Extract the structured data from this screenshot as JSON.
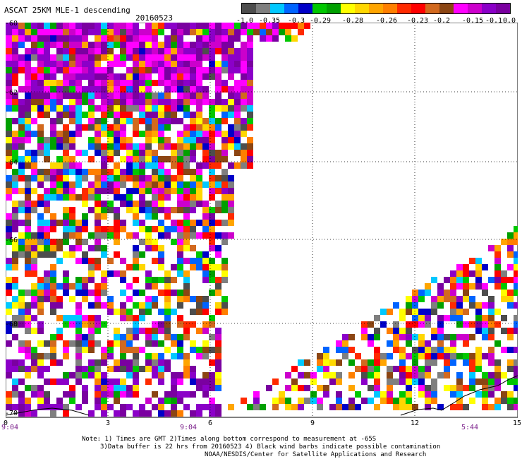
{
  "header": {
    "title": "ASCAT 25KM MLE-1 descending",
    "date": "20160523"
  },
  "colorbar": {
    "colors": [
      "#4d4d4d",
      "#7f7f7f",
      "#00c8ff",
      "#0064ff",
      "#0000c8",
      "#00c800",
      "#00a000",
      "#ffff00",
      "#ffd700",
      "#ffa500",
      "#ff7f00",
      "#ff2a00",
      "#ff0000",
      "#d2691e",
      "#8b4513",
      "#ff00ff",
      "#cc00cc",
      "#8b00c8",
      "#7a00a0"
    ],
    "labels": [
      "-1.0",
      "-0.35",
      "-0.3",
      "-0.29",
      "-0.28",
      "-0.26",
      "-0.23",
      "-0.2",
      "-0.15",
      "-0.1",
      "0.0"
    ]
  },
  "axes": {
    "x_ticks": [
      "0",
      "3",
      "6",
      "9",
      "12",
      "15"
    ],
    "lat_labels": [
      "-60",
      "-62",
      "-64",
      "-66",
      "-68",
      "-70"
    ],
    "time_labels": [
      "9:04",
      "9:04",
      "5:44"
    ]
  },
  "notes": {
    "line1": "Note: 1) Times are GMT 2)Times along bottom correspond to measurement at -65S",
    "line2": "3)Data buffer is 22 hrs from 20160523 4) Black wind barbs indicate possible contamination",
    "line3": "NOAA/NESDIS/Center for Satellite Applications and Research"
  }
}
